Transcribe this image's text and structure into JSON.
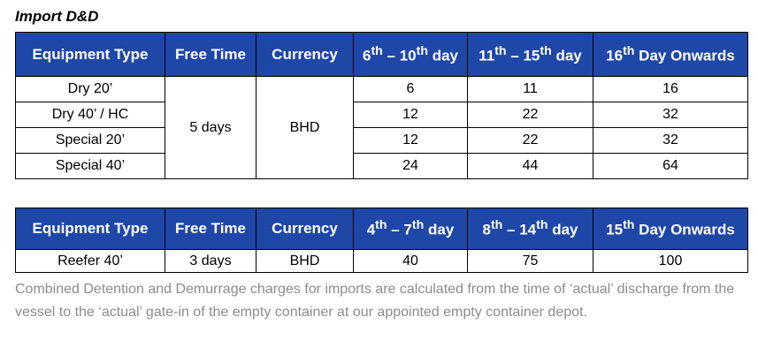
{
  "heading": "Import D&D",
  "table1": {
    "headers": [
      {
        "base": "Equipment Type",
        "sup": "",
        "tail": ""
      },
      {
        "base": "Free Time",
        "sup": "",
        "tail": ""
      },
      {
        "base": "Currency",
        "sup": "",
        "tail": ""
      },
      {
        "base": "6",
        "sup": "th",
        "tail": " – 10",
        "sup2": "th",
        "tail2": " day"
      },
      {
        "base": "11",
        "sup": "th",
        "tail": " – 15",
        "sup2": "th",
        "tail2": " day"
      },
      {
        "base": "16",
        "sup": "th",
        "tail": " Day Onwards",
        "sup2": "",
        "tail2": ""
      }
    ],
    "free_time": "5 days",
    "currency": "BHD",
    "rows": [
      {
        "equipment": "Dry 20’",
        "c1": "6",
        "c2": "11",
        "c3": "16"
      },
      {
        "equipment": "Dry 40’ / HC",
        "c1": "12",
        "c2": "22",
        "c3": "32"
      },
      {
        "equipment": "Special 20’",
        "c1": "12",
        "c2": "22",
        "c3": "32"
      },
      {
        "equipment": "Special 40’",
        "c1": "24",
        "c2": "44",
        "c3": "64"
      }
    ]
  },
  "table2": {
    "headers": [
      {
        "base": "Equipment Type",
        "sup": "",
        "tail": ""
      },
      {
        "base": "Free Time",
        "sup": "",
        "tail": ""
      },
      {
        "base": "Currency",
        "sup": "",
        "tail": ""
      },
      {
        "base": "4",
        "sup": "th",
        "tail": " – 7",
        "sup2": "th",
        "tail2": " day"
      },
      {
        "base": "8",
        "sup": "th",
        "tail": " – 14",
        "sup2": "th",
        "tail2": " day"
      },
      {
        "base": "15",
        "sup": "th",
        "tail": " Day Onwards",
        "sup2": "",
        "tail2": ""
      }
    ],
    "rows": [
      {
        "equipment": "Reefer 40’",
        "free_time": "3 days",
        "currency": "BHD",
        "c1": "40",
        "c2": "75",
        "c3": "100"
      }
    ]
  },
  "note": "Combined Detention and Demurrage charges for imports are calculated from the time of ‘actual’ discharge from the vessel to the ‘actual’ gate-in of the empty container at our appointed empty container depot."
}
